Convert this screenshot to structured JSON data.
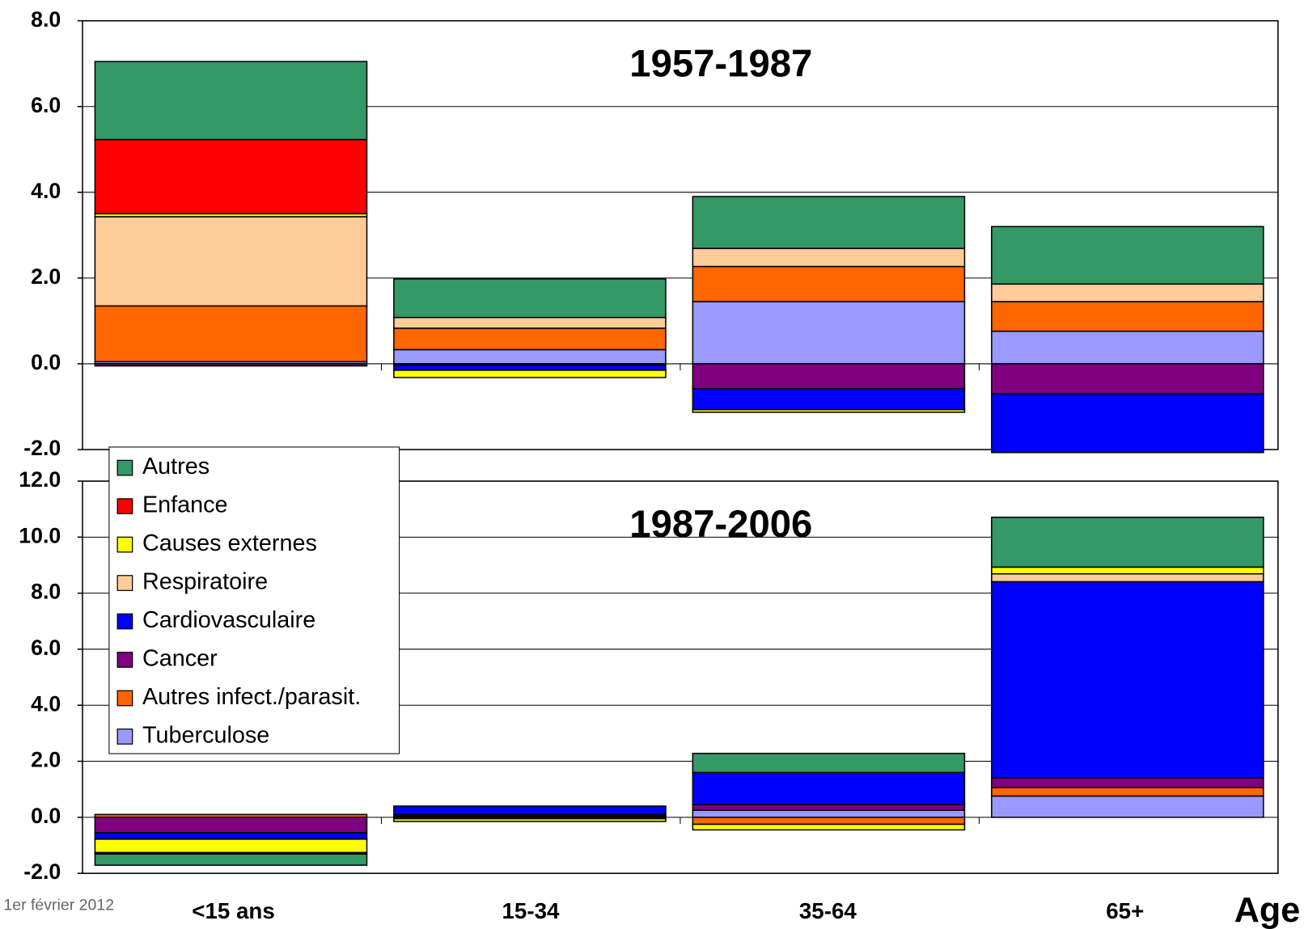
{
  "chart_data": {
    "type": "bar",
    "stacked": true,
    "grid": true,
    "categories": [
      "<15 ans",
      "15-34",
      "35-64",
      "65+"
    ],
    "xlabel": "Age",
    "series": [
      {
        "name": "Autres",
        "color": "#339966"
      },
      {
        "name": "Enfance",
        "color": "#ff0000"
      },
      {
        "name": "Causes externes",
        "color": "#ffff00"
      },
      {
        "name": "Respiratoire",
        "color": "#ffcc99"
      },
      {
        "name": "Cardiovasculaire",
        "color": "#0000ff"
      },
      {
        "name": "Cancer",
        "color": "#800080"
      },
      {
        "name": "Autres infect./parasit.",
        "color": "#ff6600"
      },
      {
        "name": "Tuberculose",
        "color": "#9999ff"
      }
    ],
    "panels": [
      {
        "title": "1957-1987",
        "ylim": [
          -2,
          8
        ],
        "yticks": [
          {
            "value": -2,
            "label": "-2.0"
          },
          {
            "value": 0,
            "label": "0.0"
          },
          {
            "value": 2,
            "label": "2.0"
          },
          {
            "value": 4,
            "label": "4.0"
          },
          {
            "value": 6,
            "label": "6.0"
          },
          {
            "value": 8,
            "label": "8.0"
          }
        ],
        "values": [
          [
            1.82,
            0.9,
            1.21,
            1.34
          ],
          [
            1.73,
            0,
            0,
            0
          ],
          [
            0.07,
            -0.17,
            -0.06,
            0
          ],
          [
            2.08,
            0.25,
            0.42,
            0.41
          ],
          [
            0,
            -0.12,
            -0.49,
            -1.37
          ],
          [
            -0.05,
            -0.03,
            -0.58,
            -0.7
          ],
          [
            1.3,
            0.5,
            0.82,
            0.69
          ],
          [
            0.05,
            0.33,
            1.45,
            0.76
          ]
        ]
      },
      {
        "title": "1987-2006",
        "ylim": [
          -2,
          12
        ],
        "yticks": [
          {
            "value": -2,
            "label": "-2.0"
          },
          {
            "value": 0,
            "label": "0.0"
          },
          {
            "value": 2,
            "label": "2.0"
          },
          {
            "value": 4,
            "label": "4.0"
          },
          {
            "value": 6,
            "label": "6.0"
          },
          {
            "value": 8,
            "label": "8.0"
          },
          {
            "value": 10,
            "label": "10.0"
          },
          {
            "value": 12,
            "label": "12.0"
          }
        ],
        "values": [
          [
            -0.4,
            0,
            0.68,
            1.78
          ],
          [
            -0.05,
            0,
            0,
            0
          ],
          [
            -0.48,
            -0.1,
            -0.2,
            0.24
          ],
          [
            0,
            0,
            0,
            0.28
          ],
          [
            -0.23,
            0.3,
            1.15,
            7.0
          ],
          [
            -0.55,
            0.05,
            0.2,
            0.35
          ],
          [
            0.1,
            -0.05,
            -0.25,
            0.3
          ],
          [
            0,
            0.05,
            0.25,
            0.76
          ]
        ]
      }
    ]
  },
  "footer": "1er février 2012"
}
